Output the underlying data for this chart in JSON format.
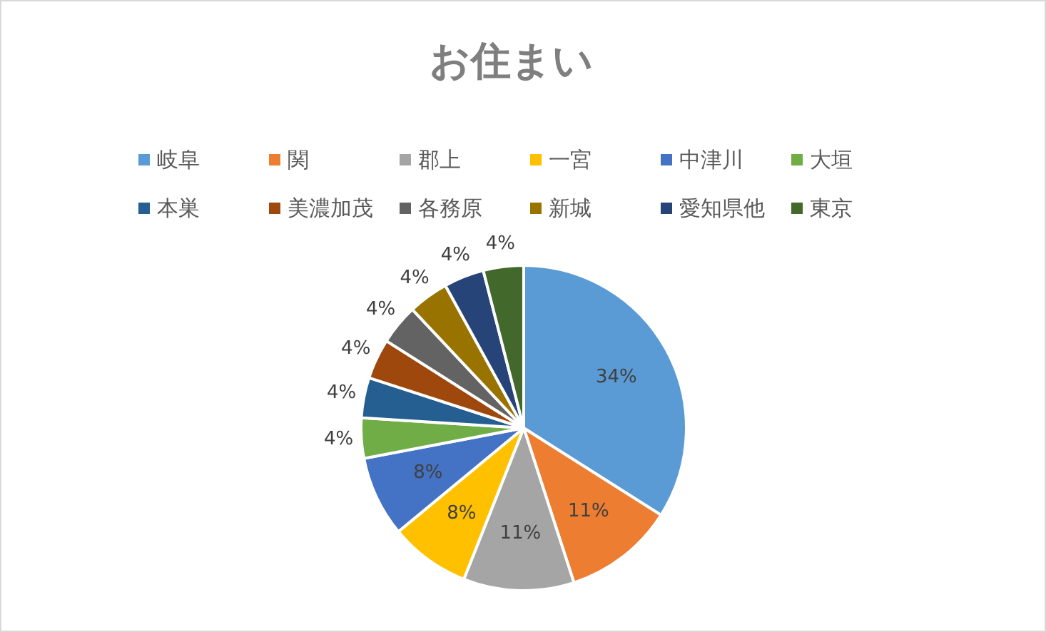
{
  "chart_data": {
    "type": "pie",
    "title": "お住まい",
    "categories": [
      "岐阜",
      "関",
      "郡上",
      "一宮",
      "中津川",
      "大垣",
      "本巣",
      "美濃加茂",
      "各務原",
      "新城",
      "愛知県他",
      "東京"
    ],
    "values": [
      34,
      11,
      11,
      8,
      8,
      4,
      4,
      4,
      4,
      4,
      4,
      4
    ],
    "value_labels": [
      "34%",
      "11%",
      "11%",
      "8%",
      "8%",
      "4%",
      "4%",
      "4%",
      "4%",
      "4%",
      "4%",
      "4%"
    ],
    "colors": [
      "#5b9bd5",
      "#ed7d31",
      "#a5a5a5",
      "#ffc000",
      "#4472c4",
      "#70ad47",
      "#255e91",
      "#9e480e",
      "#636363",
      "#997300",
      "#264478",
      "#43682b"
    ],
    "legend": "top"
  }
}
